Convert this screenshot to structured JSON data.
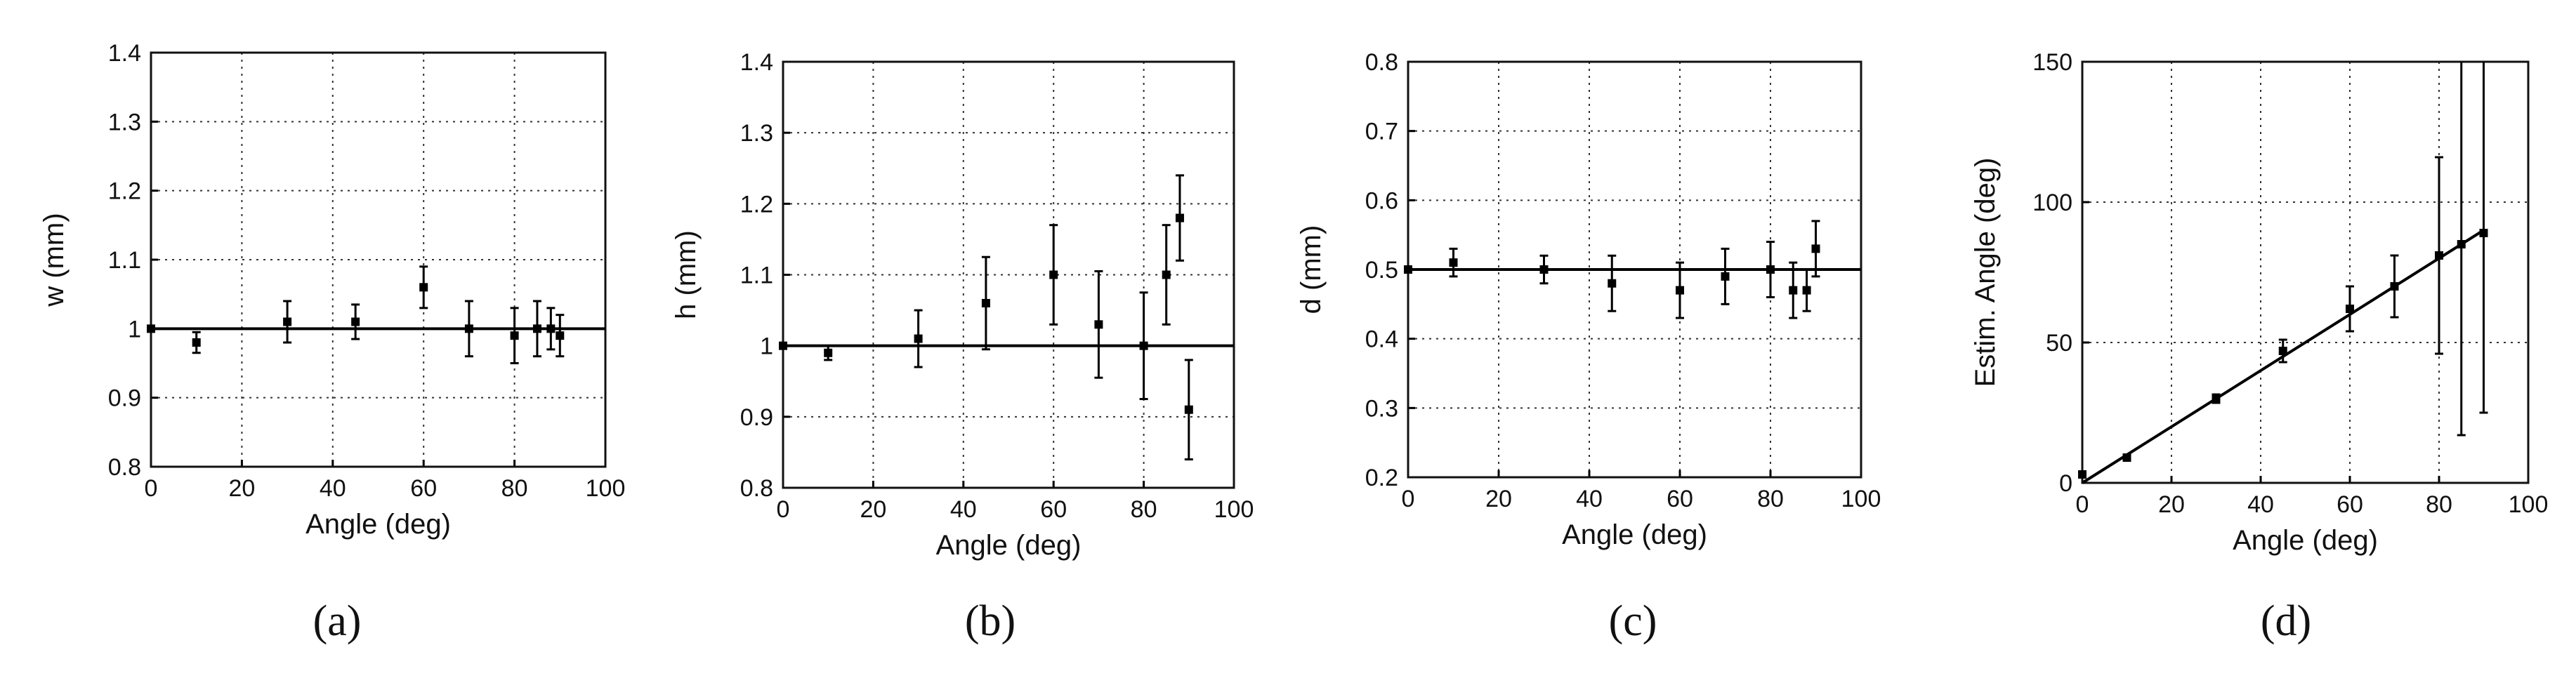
{
  "chart_data": [
    {
      "type": "scatter",
      "panel": "(a)",
      "xlabel": "Angle (deg)",
      "ylabel": "w (mm)",
      "xlim": [
        0,
        100
      ],
      "ylim": [
        0.8,
        1.4
      ],
      "xticks": [
        "0",
        "20",
        "40",
        "60",
        "80",
        "100"
      ],
      "yticks": [
        "0.8",
        "0.9",
        "1",
        "1.1",
        "1.2",
        "1.3",
        "1.4"
      ],
      "grid": true,
      "reference_line": {
        "from": [
          0,
          1.0
        ],
        "to": [
          100,
          1.0
        ]
      },
      "points": [
        {
          "x": 0,
          "y": 1.0,
          "err": 0.0
        },
        {
          "x": 10,
          "y": 0.98,
          "err": 0.015
        },
        {
          "x": 30,
          "y": 1.01,
          "err": 0.03
        },
        {
          "x": 45,
          "y": 1.01,
          "err": 0.025
        },
        {
          "x": 60,
          "y": 1.06,
          "err": 0.03
        },
        {
          "x": 70,
          "y": 1.0,
          "err": 0.04
        },
        {
          "x": 80,
          "y": 0.99,
          "err": 0.04
        },
        {
          "x": 85,
          "y": 1.0,
          "err": 0.04
        },
        {
          "x": 88,
          "y": 1.0,
          "err": 0.03
        },
        {
          "x": 90,
          "y": 0.99,
          "err": 0.03
        }
      ]
    },
    {
      "type": "scatter",
      "panel": "(b)",
      "xlabel": "Angle (deg)",
      "ylabel": "h (mm)",
      "xlim": [
        0,
        100
      ],
      "ylim": [
        0.8,
        1.4
      ],
      "xticks": [
        "0",
        "20",
        "40",
        "60",
        "80",
        "100"
      ],
      "yticks": [
        "0.8",
        "0.9",
        "1",
        "1.1",
        "1.2",
        "1.3",
        "1.4"
      ],
      "grid": true,
      "reference_line": {
        "from": [
          0,
          1.0
        ],
        "to": [
          100,
          1.0
        ]
      },
      "points": [
        {
          "x": 0,
          "y": 1.0,
          "err": 0.0
        },
        {
          "x": 10,
          "y": 0.99,
          "err": 0.01
        },
        {
          "x": 30,
          "y": 1.01,
          "err": 0.04
        },
        {
          "x": 45,
          "y": 1.06,
          "err": 0.065
        },
        {
          "x": 60,
          "y": 1.1,
          "err": 0.07
        },
        {
          "x": 70,
          "y": 1.03,
          "err": 0.075
        },
        {
          "x": 80,
          "y": 1.0,
          "err": 0.075
        },
        {
          "x": 85,
          "y": 1.1,
          "err": 0.07
        },
        {
          "x": 88,
          "y": 1.18,
          "err": 0.06
        },
        {
          "x": 90,
          "y": 0.91,
          "err": 0.07
        }
      ]
    },
    {
      "type": "scatter",
      "panel": "(c)",
      "xlabel": "Angle (deg)",
      "ylabel": "d (mm)",
      "xlim": [
        0,
        100
      ],
      "ylim": [
        0.2,
        0.8
      ],
      "xticks": [
        "0",
        "20",
        "40",
        "60",
        "80",
        "100"
      ],
      "yticks": [
        "0.2",
        "0.3",
        "0.4",
        "0.5",
        "0.6",
        "0.7",
        "0.8"
      ],
      "grid": true,
      "reference_line": {
        "from": [
          0,
          0.5
        ],
        "to": [
          100,
          0.5
        ]
      },
      "points": [
        {
          "x": 0,
          "y": 0.5,
          "err": 0.0
        },
        {
          "x": 10,
          "y": 0.51,
          "err": 0.02
        },
        {
          "x": 30,
          "y": 0.5,
          "err": 0.02
        },
        {
          "x": 45,
          "y": 0.48,
          "err": 0.04
        },
        {
          "x": 60,
          "y": 0.47,
          "err": 0.04
        },
        {
          "x": 70,
          "y": 0.49,
          "err": 0.04
        },
        {
          "x": 80,
          "y": 0.5,
          "err": 0.04
        },
        {
          "x": 85,
          "y": 0.47,
          "err": 0.04
        },
        {
          "x": 88,
          "y": 0.47,
          "err": 0.03
        },
        {
          "x": 90,
          "y": 0.53,
          "err": 0.04
        }
      ]
    },
    {
      "type": "scatter",
      "panel": "(d)",
      "xlabel": "Angle (deg)",
      "ylabel": "Estim. Angle (deg)",
      "xlim": [
        0,
        100
      ],
      "ylim": [
        0,
        150
      ],
      "xticks": [
        "0",
        "20",
        "40",
        "60",
        "80",
        "100"
      ],
      "yticks": [
        "0",
        "50",
        "100",
        "150"
      ],
      "grid": true,
      "reference_line": {
        "from": [
          0,
          0
        ],
        "to": [
          90,
          90
        ]
      },
      "points": [
        {
          "x": 0,
          "y": 3,
          "err": 0.0
        },
        {
          "x": 10,
          "y": 9,
          "err": 0.0
        },
        {
          "x": 30,
          "y": 30,
          "err": 1.5
        },
        {
          "x": 45,
          "y": 47,
          "err": 4
        },
        {
          "x": 60,
          "y": 62,
          "err": 8
        },
        {
          "x": 70,
          "y": 70,
          "err": 11
        },
        {
          "x": 80,
          "y": 81,
          "err": 35
        },
        {
          "x": 85,
          "y": 85,
          "err": 68
        },
        {
          "x": 90,
          "y": 89,
          "err": 64
        }
      ]
    }
  ]
}
